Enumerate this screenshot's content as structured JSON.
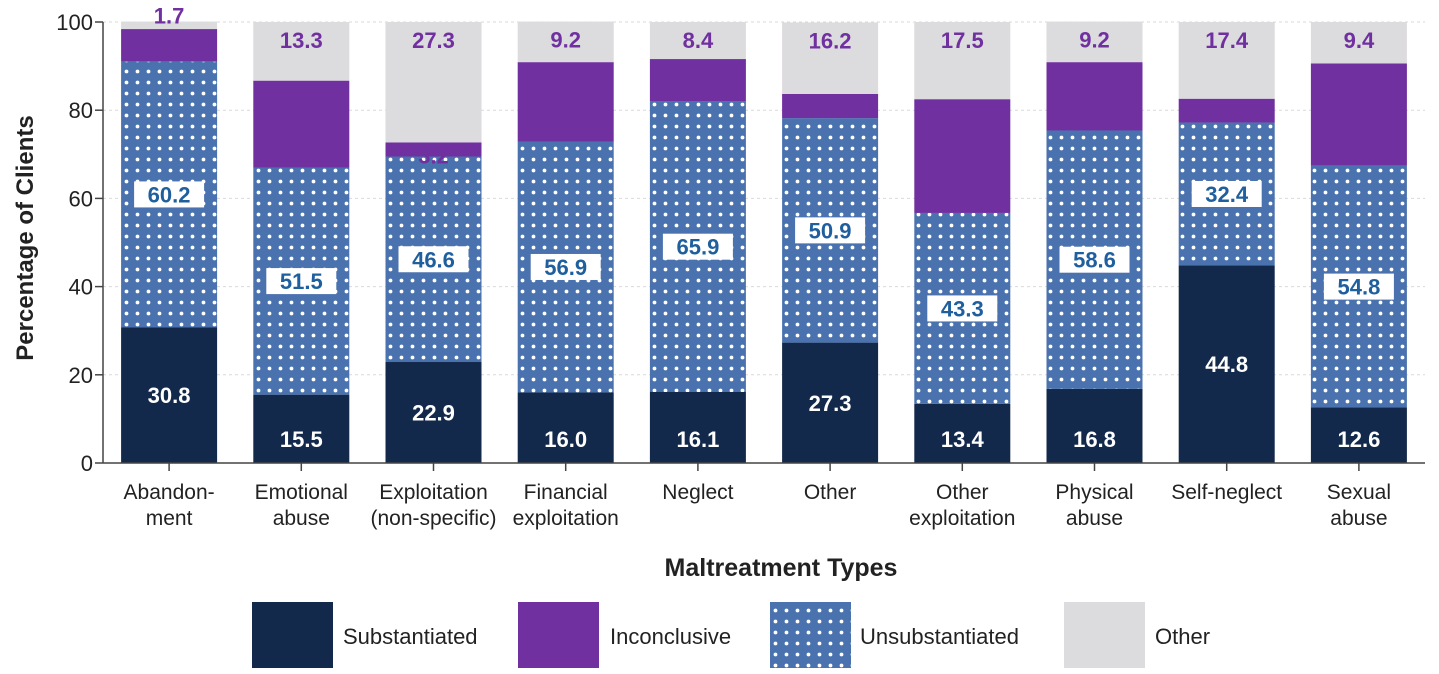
{
  "chart_data": {
    "type": "bar",
    "stacked": true,
    "title": "",
    "xlabel": "Maltreatment Types",
    "ylabel": "Percentage of Clients",
    "ylim": [
      0,
      100
    ],
    "yticks": [
      0,
      20,
      40,
      60,
      80,
      100
    ],
    "grid": true,
    "legend_position": "bottom",
    "categories": [
      "Abandon-|ment",
      "Emotional|abuse",
      "Exploitation|(non-specific)",
      "Financial|exploitation",
      "Neglect",
      "Other",
      "Other|exploitation",
      "Physical|abuse",
      "Self-neglect",
      "Sexual|abuse"
    ],
    "series": [
      {
        "name": "Substantiated",
        "color": "#13294b",
        "pattern": "solid",
        "values": [
          30.8,
          15.5,
          22.9,
          16.0,
          16.1,
          27.3,
          13.4,
          16.8,
          44.8,
          12.6
        ],
        "labels": [
          "30.8",
          "15.5",
          "22.9",
          "16.0",
          "16.1",
          "27.3",
          "13.4",
          "16.8",
          "44.8",
          "12.6"
        ]
      },
      {
        "name": "Unsubstantiated",
        "color": "#4a72ae",
        "pattern": "white-dots",
        "values": [
          60.2,
          51.5,
          46.6,
          56.9,
          65.9,
          50.9,
          43.3,
          58.6,
          32.4,
          54.8
        ],
        "labels": [
          "60.2",
          "51.5",
          "46.6",
          "56.9",
          "65.9",
          "50.9",
          "43.3",
          "58.6",
          "32.4",
          "54.8"
        ]
      },
      {
        "name": "Inconclusive",
        "color": "#7030a0",
        "pattern": "solid",
        "values": [
          7.4,
          19.7,
          3.2,
          18.0,
          9.6,
          5.5,
          25.8,
          15.5,
          5.4,
          23.2
        ],
        "labels": [
          "7.4",
          "19.7",
          "3.2",
          "18.0",
          "9.6",
          "5.5",
          "25.8",
          "15.5",
          "5.4",
          "23.2"
        ]
      },
      {
        "name": "Other",
        "color": "#dcdbdd",
        "pattern": "solid",
        "values": [
          1.7,
          13.3,
          27.3,
          9.2,
          8.4,
          16.2,
          17.5,
          9.2,
          17.4,
          9.4
        ],
        "labels": [
          "1.7",
          "13.3",
          "27.3",
          "9.2",
          "8.4",
          "16.2",
          "17.5",
          "9.2",
          "17.4",
          "9.4"
        ]
      }
    ],
    "legend_order": [
      "Substantiated",
      "Inconclusive",
      "Unsubstantiated",
      "Other"
    ]
  }
}
